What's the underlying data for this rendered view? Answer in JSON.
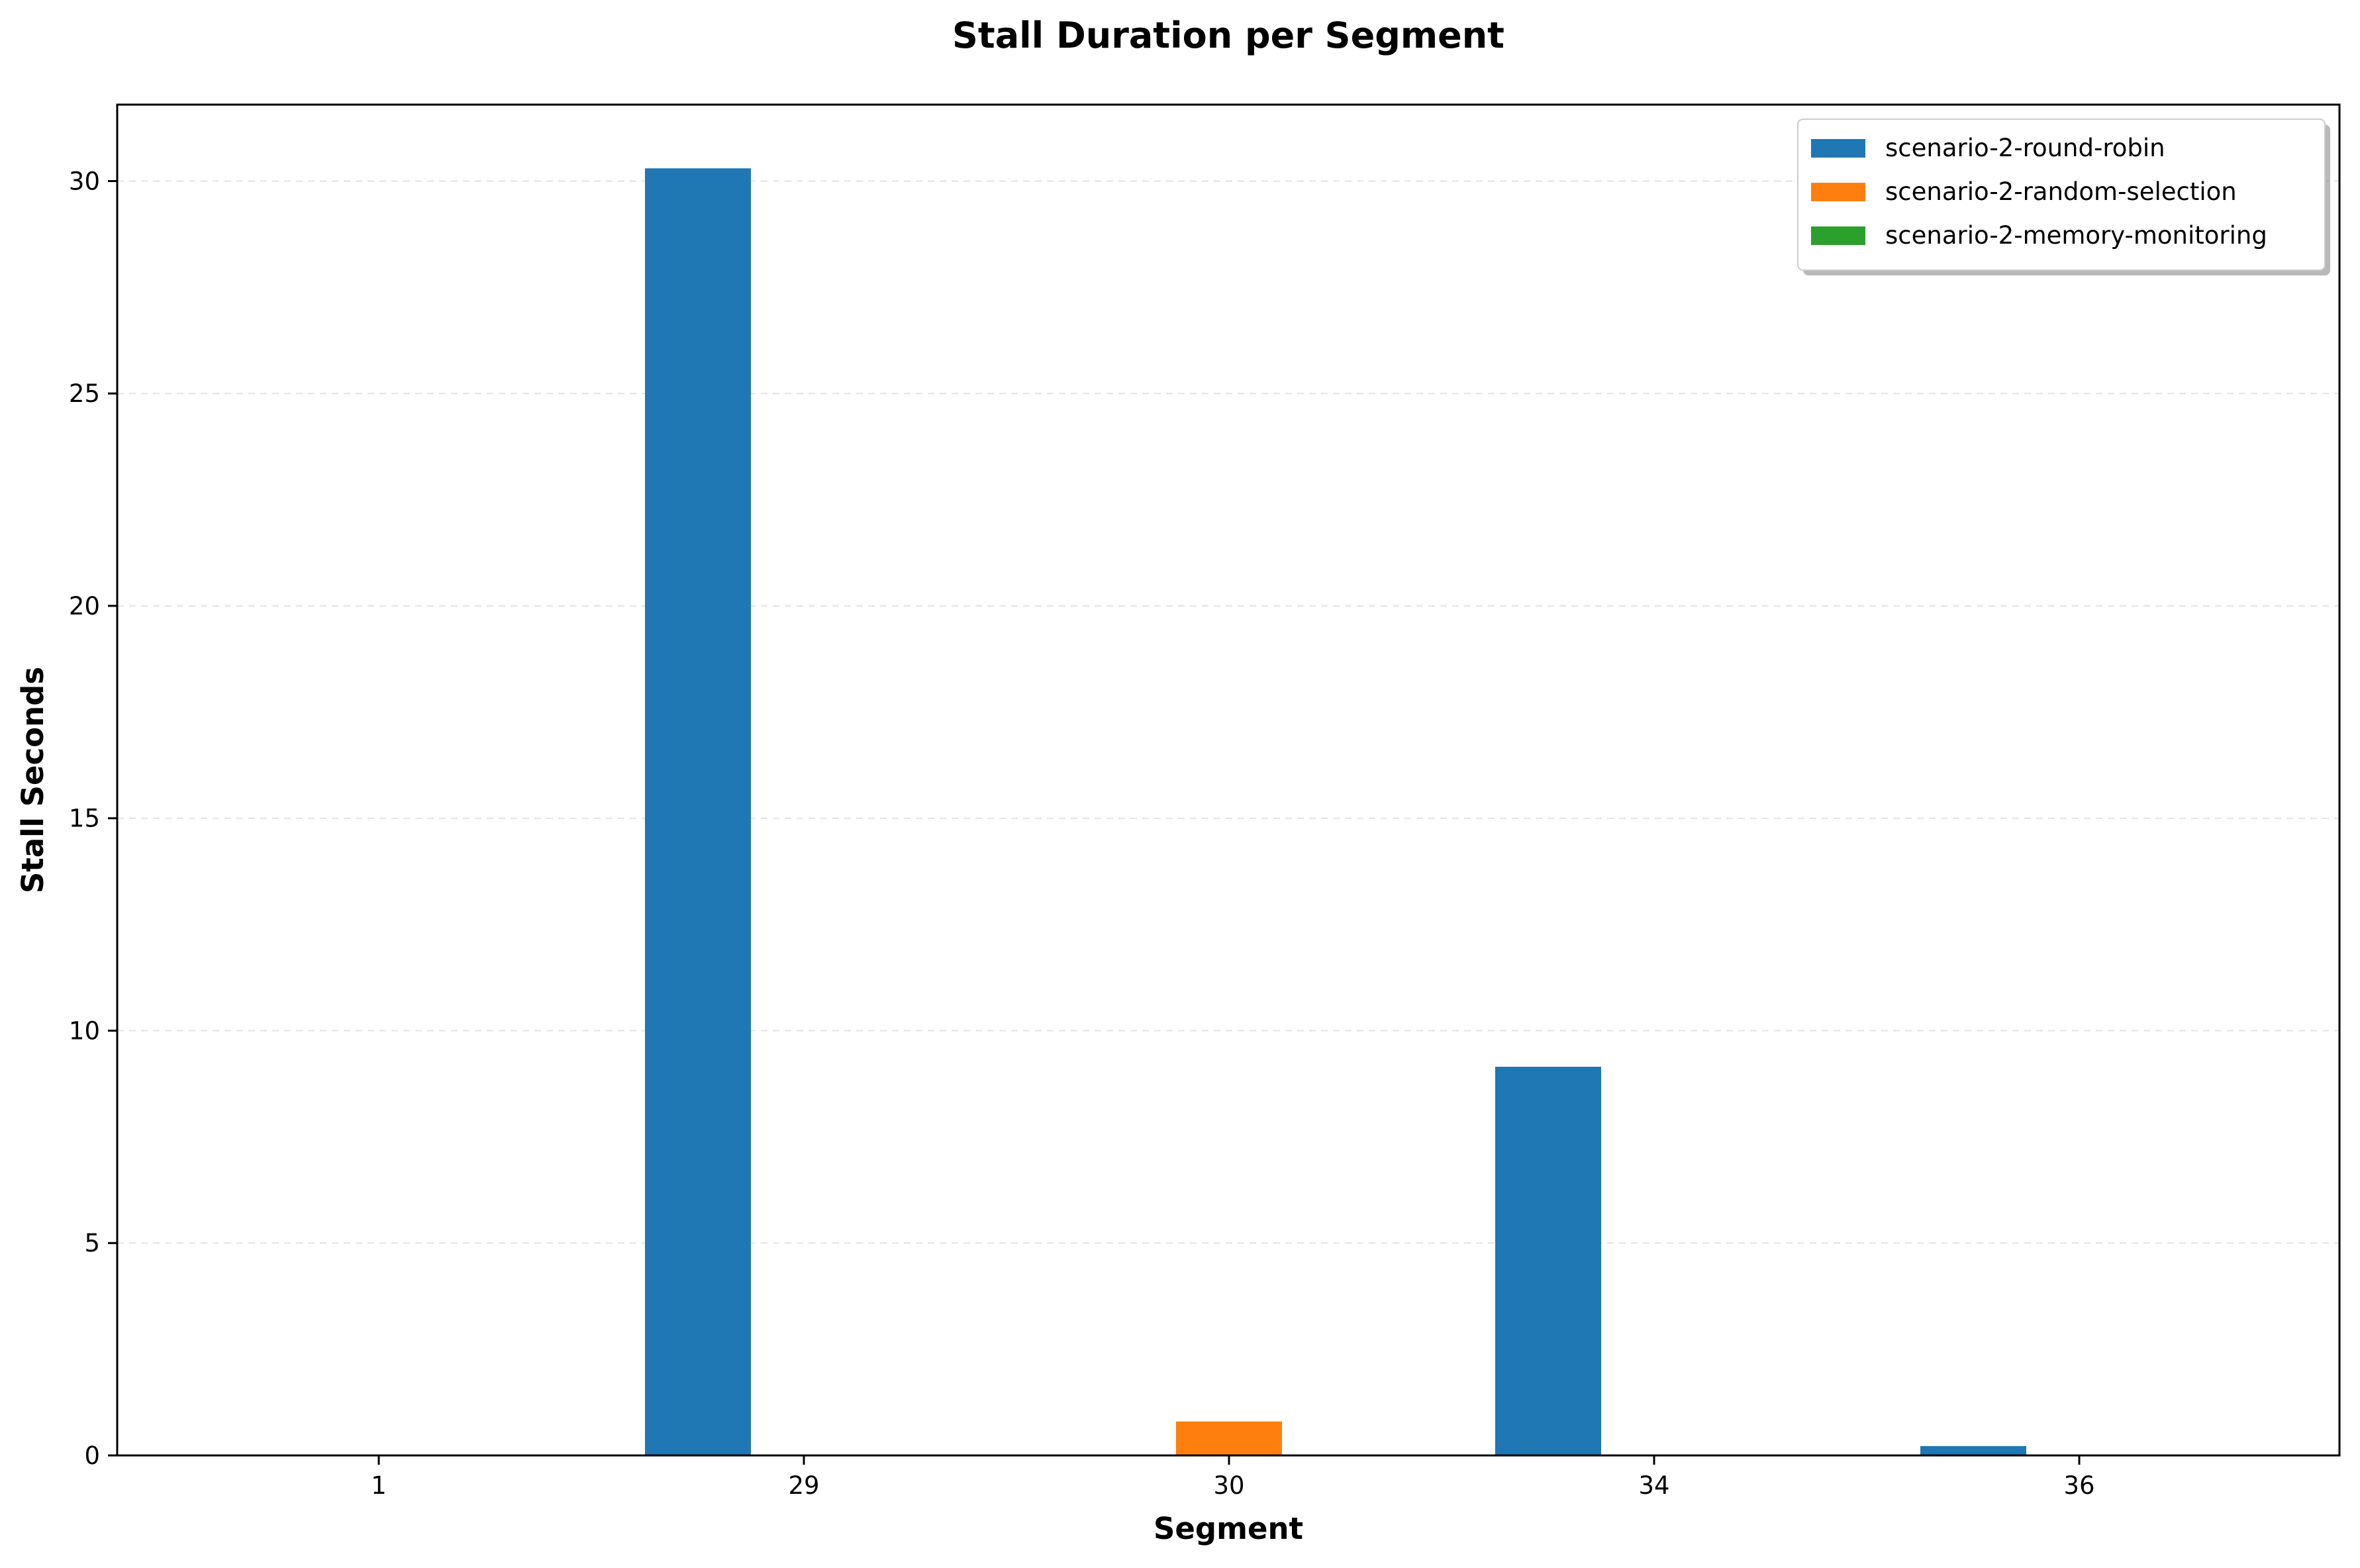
{
  "chart_data": {
    "type": "bar",
    "title": "Stall Duration per Segment",
    "xlabel": "Segment",
    "ylabel": "Stall Seconds",
    "categories": [
      "1",
      "29",
      "30",
      "34",
      "36"
    ],
    "series": [
      {
        "name": "scenario-2-round-robin",
        "color": "#1f77b4",
        "values": [
          0,
          30.3,
          0,
          9.15,
          0.22
        ]
      },
      {
        "name": "scenario-2-random-selection",
        "color": "#ff7f0e",
        "values": [
          0,
          0,
          0.8,
          0,
          0
        ]
      },
      {
        "name": "scenario-2-memory-monitoring",
        "color": "#2ca02c",
        "values": [
          0,
          0,
          0,
          0,
          0
        ]
      }
    ],
    "ylim": [
      0,
      31.8
    ],
    "yticks": [
      0,
      5,
      10,
      15,
      20,
      25,
      30
    ],
    "grid": true,
    "legend_position": "top-right"
  }
}
